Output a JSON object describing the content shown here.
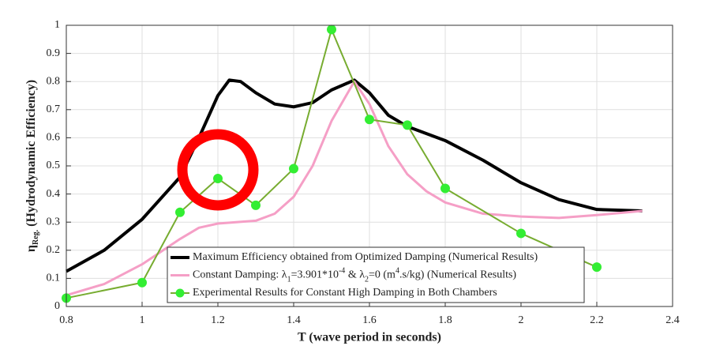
{
  "chart_data": {
    "type": "line",
    "xlabel": "T (wave period in seconds)",
    "ylabel": [
      {
        "text": "η"
      },
      {
        "text": "Reg.",
        "shift": "sub"
      },
      {
        "text": " (Hydrodynamic Efficiency)"
      }
    ],
    "xlim": [
      0.8,
      2.4
    ],
    "xticks": [
      0.8,
      1,
      1.2,
      1.4,
      1.6,
      1.8,
      2,
      2.2,
      2.4
    ],
    "ylim": [
      0,
      1
    ],
    "yticks": [
      0,
      0.1,
      0.2,
      0.3,
      0.4,
      0.5,
      0.6,
      0.7,
      0.8,
      0.9,
      1
    ],
    "grid": true,
    "legend": "bottom",
    "series": [
      {
        "name": [
          {
            "text": "Maximum Efficiency obtained from Optimized Damping (Numerical Results)"
          }
        ],
        "color": "#000000",
        "width": 4,
        "markers": false,
        "x": [
          0.8,
          0.9,
          1.0,
          1.1,
          1.15,
          1.2,
          1.23,
          1.26,
          1.3,
          1.35,
          1.4,
          1.45,
          1.5,
          1.56,
          1.6,
          1.65,
          1.7,
          1.8,
          1.9,
          2.0,
          2.1,
          2.2,
          2.32
        ],
        "values": [
          0.125,
          0.2,
          0.31,
          0.46,
          0.6,
          0.75,
          0.805,
          0.8,
          0.76,
          0.72,
          0.71,
          0.725,
          0.77,
          0.805,
          0.76,
          0.68,
          0.64,
          0.59,
          0.52,
          0.44,
          0.38,
          0.345,
          0.34
        ]
      },
      {
        "name": [
          {
            "text": "Constant Damping: λ"
          },
          {
            "text": "1",
            "shift": "sub"
          },
          {
            "text": "=3.901*10"
          },
          {
            "text": "-4",
            "shift": "super"
          },
          {
            "text": " & λ"
          },
          {
            "text": "2",
            "shift": "sub"
          },
          {
            "text": "=0 (m"
          },
          {
            "text": "4",
            "shift": "super"
          },
          {
            "text": ".s/kg) (Numerical Results)"
          }
        ],
        "color": "#f59fc6",
        "width": 3,
        "markers": false,
        "x": [
          0.8,
          0.9,
          1.0,
          1.1,
          1.15,
          1.2,
          1.3,
          1.35,
          1.4,
          1.45,
          1.5,
          1.56,
          1.6,
          1.65,
          1.7,
          1.75,
          1.8,
          1.9,
          2.0,
          2.1,
          2.2,
          2.32
        ],
        "values": [
          0.04,
          0.08,
          0.15,
          0.24,
          0.28,
          0.295,
          0.305,
          0.33,
          0.39,
          0.5,
          0.66,
          0.8,
          0.72,
          0.57,
          0.47,
          0.41,
          0.37,
          0.33,
          0.32,
          0.315,
          0.325,
          0.34
        ]
      },
      {
        "name": [
          {
            "text": "Experimental Results for Constant High Damping in Both Chambers"
          }
        ],
        "color": "#77ac30",
        "marker_color": "#33ee33",
        "width": 2,
        "markers": true,
        "x": [
          0.8,
          1.0,
          1.1,
          1.2,
          1.3,
          1.4,
          1.5,
          1.6,
          1.7,
          1.8,
          2.0,
          2.2
        ],
        "values": [
          0.03,
          0.085,
          0.335,
          0.455,
          0.36,
          0.49,
          0.985,
          0.665,
          0.645,
          0.42,
          0.26,
          0.14
        ]
      }
    ]
  }
}
